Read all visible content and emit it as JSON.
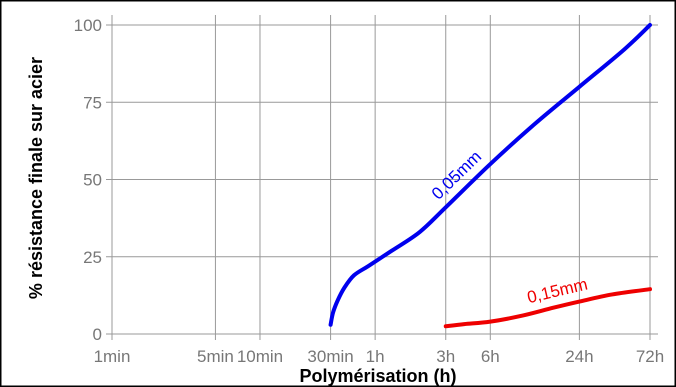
{
  "chart_data": {
    "type": "line",
    "title": "",
    "xlabel": "Polymérisation (h)",
    "ylabel": "% résistance finale sur acier",
    "x_scale": "log",
    "x_ticks": [
      {
        "label": "1min",
        "hours": 0.016667
      },
      {
        "label": "5min",
        "hours": 0.083333
      },
      {
        "label": "10min",
        "hours": 0.166667
      },
      {
        "label": "30min",
        "hours": 0.5
      },
      {
        "label": "1h",
        "hours": 1
      },
      {
        "label": "3h",
        "hours": 3
      },
      {
        "label": "6h",
        "hours": 6
      },
      {
        "label": "24h",
        "hours": 24
      },
      {
        "label": "72h",
        "hours": 72
      }
    ],
    "y_ticks": [
      0,
      25,
      50,
      75,
      100
    ],
    "xlim": [
      0.016667,
      72
    ],
    "ylim": [
      0,
      100
    ],
    "grid": true,
    "colors": {
      "0,05mm": "#0000ee",
      "0,15mm": "#ee0000",
      "grid": "#999999",
      "tick_text": "#777777"
    },
    "series": [
      {
        "name": "0,05mm",
        "points": [
          {
            "x": 0.5,
            "y": 3
          },
          {
            "x": 0.52,
            "y": 7
          },
          {
            "x": 0.56,
            "y": 11
          },
          {
            "x": 0.62,
            "y": 15
          },
          {
            "x": 0.72,
            "y": 19
          },
          {
            "x": 0.9,
            "y": 22
          },
          {
            "x": 1.3,
            "y": 27
          },
          {
            "x": 2,
            "y": 33
          },
          {
            "x": 3,
            "y": 41
          },
          {
            "x": 6,
            "y": 55
          },
          {
            "x": 12,
            "y": 68
          },
          {
            "x": 24,
            "y": 80
          },
          {
            "x": 48,
            "y": 92
          },
          {
            "x": 72,
            "y": 100
          }
        ]
      },
      {
        "name": "0,15mm",
        "points": [
          {
            "x": 3,
            "y": 2.5
          },
          {
            "x": 4,
            "y": 3.2
          },
          {
            "x": 6,
            "y": 4
          },
          {
            "x": 10,
            "y": 6
          },
          {
            "x": 16,
            "y": 8.5
          },
          {
            "x": 24,
            "y": 10.5
          },
          {
            "x": 40,
            "y": 12.8
          },
          {
            "x": 72,
            "y": 14.5
          }
        ]
      }
    ]
  }
}
